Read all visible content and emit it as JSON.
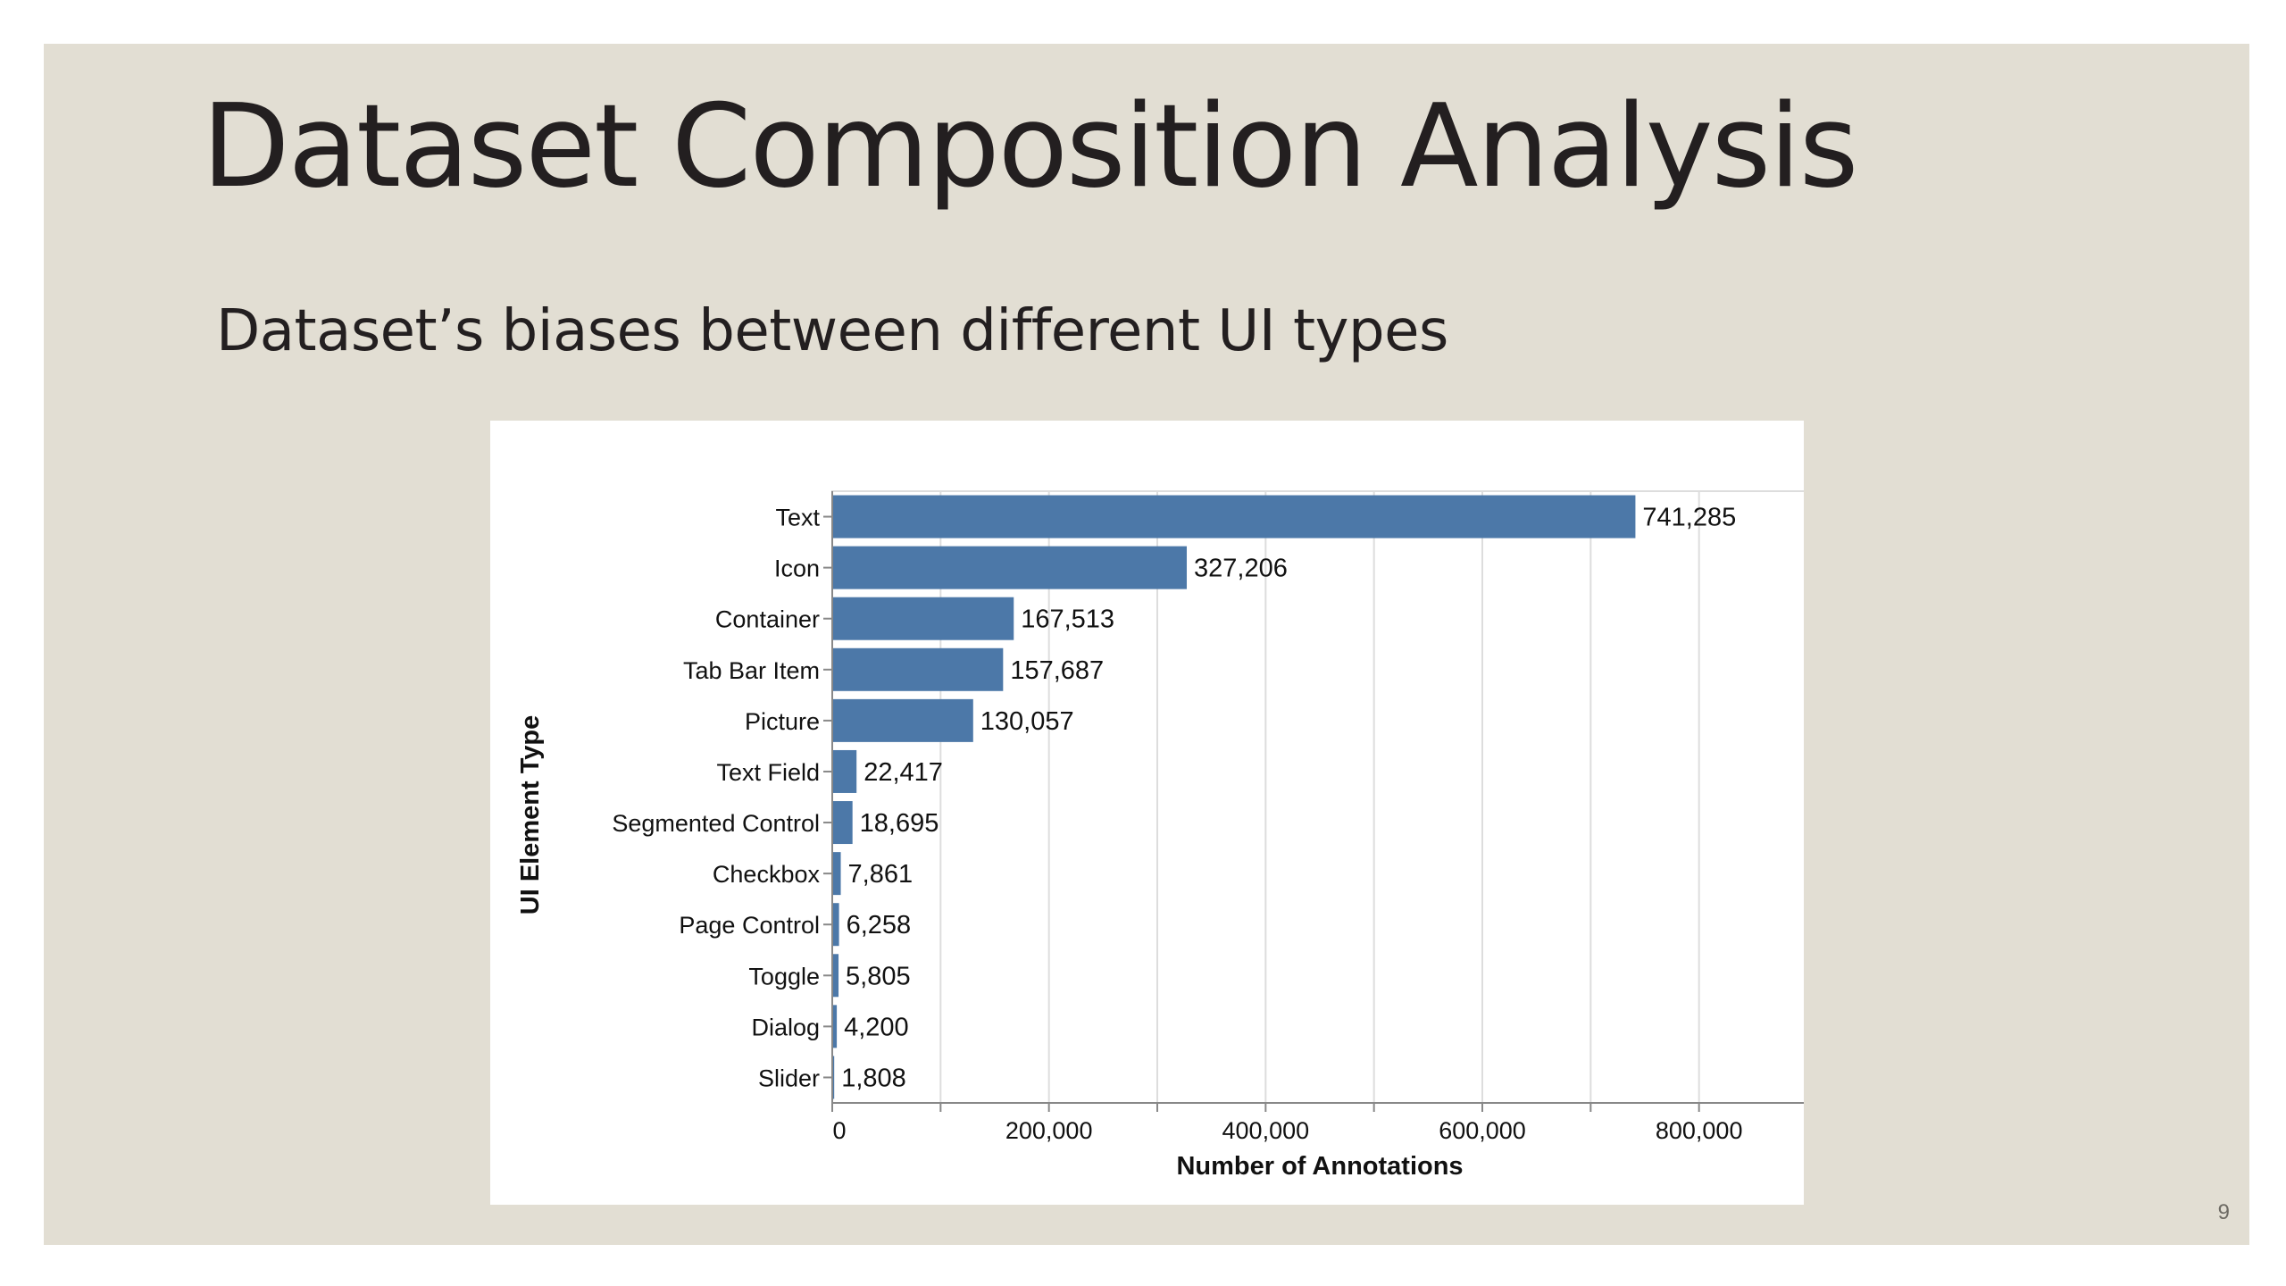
{
  "slide": {
    "title": "Dataset Composition Analysis",
    "subtitle": "Dataset’s biases between different UI types",
    "page_number": "9",
    "background_color": "#e2ded3"
  },
  "chart_data": {
    "type": "bar",
    "orientation": "horizontal",
    "categories": [
      "Text",
      "Icon",
      "Container",
      "Tab Bar Item",
      "Picture",
      "Text Field",
      "Segmented Control",
      "Checkbox",
      "Page Control",
      "Toggle",
      "Dialog",
      "Slider"
    ],
    "values": [
      741285,
      327206,
      167513,
      157687,
      130057,
      22417,
      18695,
      7861,
      6258,
      5805,
      4200,
      1808
    ],
    "value_labels": [
      "741,285",
      "327,206",
      "167,513",
      "157,687",
      "130,057",
      "22,417",
      "18,695",
      "7,861",
      "6,258",
      "5,805",
      "4,200",
      "1,808"
    ],
    "xlabel": "Number of Annotations",
    "ylabel": "UI Element Type",
    "xlim": [
      0,
      900000
    ],
    "x_ticks": [
      0,
      200000,
      400000,
      600000,
      800000
    ],
    "x_tick_labels": [
      "0",
      "200,000",
      "400,000",
      "600,000",
      "800,000"
    ],
    "grid": true,
    "bar_color": "#4c78a8"
  }
}
